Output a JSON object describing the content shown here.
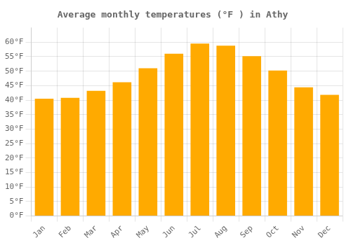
{
  "chart_data": {
    "type": "bar",
    "title": "Average monthly temperatures (°F ) in Athy",
    "categories": [
      "Jan",
      "Feb",
      "Mar",
      "Apr",
      "May",
      "Jun",
      "Jul",
      "Aug",
      "Sep",
      "Oct",
      "Nov",
      "Dec"
    ],
    "values": [
      40.5,
      40.8,
      43.2,
      46.2,
      51.0,
      56.0,
      59.5,
      58.8,
      55.2,
      50.2,
      44.4,
      41.8
    ],
    "color": "#FFAA00",
    "ylim": [
      0,
      65
    ],
    "yticks": [
      {
        "value": 0,
        "label": "0°F"
      },
      {
        "value": 5,
        "label": "5°F"
      },
      {
        "value": 10,
        "label": "10°F"
      },
      {
        "value": 15,
        "label": "15°F"
      },
      {
        "value": 20,
        "label": "20°F"
      },
      {
        "value": 25,
        "label": "25°F"
      },
      {
        "value": 30,
        "label": "30°F"
      },
      {
        "value": 35,
        "label": "35°F"
      },
      {
        "value": 40,
        "label": "40°F"
      },
      {
        "value": 45,
        "label": "45°F"
      },
      {
        "value": 50,
        "label": "50°F"
      },
      {
        "value": 55,
        "label": "55°F"
      },
      {
        "value": 60,
        "label": "60°F"
      }
    ],
    "grid": true
  }
}
